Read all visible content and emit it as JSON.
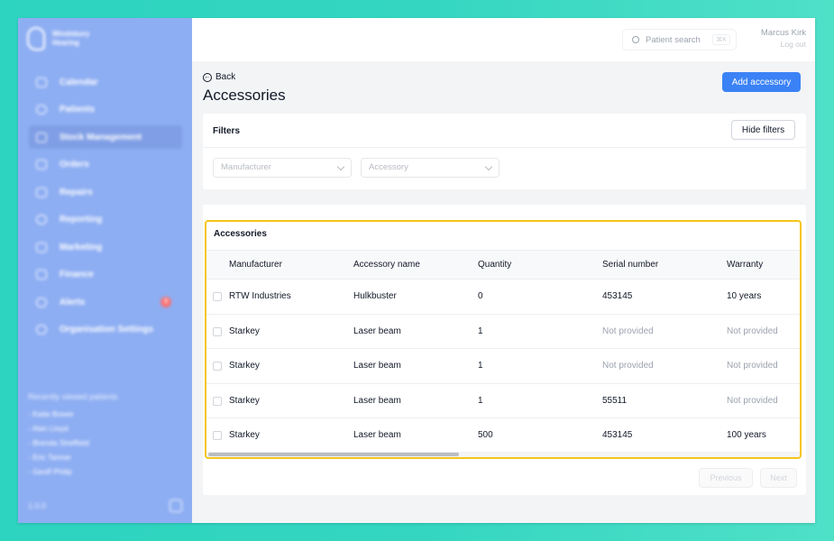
{
  "app": {
    "logo_line1": "Windsbury",
    "logo_line2": "Hearing"
  },
  "sidebar": {
    "items": [
      {
        "label": "Calendar"
      },
      {
        "label": "Patients"
      },
      {
        "label": "Stock Management"
      },
      {
        "label": "Orders"
      },
      {
        "label": "Repairs"
      },
      {
        "label": "Reporting"
      },
      {
        "label": "Marketing"
      },
      {
        "label": "Finance"
      },
      {
        "label": "Alerts",
        "badge": "3"
      },
      {
        "label": "Organisation Settings"
      }
    ],
    "recent_title": "Recently viewed patients",
    "recent": [
      "- Katie Bower",
      "- Alan Lloyd",
      "- Brenda Sheffield",
      "- Eric Tanner",
      "- Geoff Philip"
    ],
    "version": "1.0.0"
  },
  "header": {
    "search_placeholder": "Patient search",
    "search_shortcut": "⌘K",
    "user_name": "Marcus Kirk",
    "logout_label": "Log out"
  },
  "page": {
    "back_label": "Back",
    "title": "Accessories",
    "add_button": "Add accessory"
  },
  "filters": {
    "title": "Filters",
    "hide_button": "Hide filters",
    "manufacturer_placeholder": "Manufacturer",
    "accessory_placeholder": "Accessory"
  },
  "table": {
    "title": "Accessories",
    "columns": [
      "Manufacturer",
      "Accessory name",
      "Quantity",
      "Serial number",
      "Warranty"
    ],
    "rows": [
      [
        "RTW Industries",
        "Hulkbuster",
        "0",
        "453145",
        "10 years"
      ],
      [
        "Starkey",
        "Laser beam",
        "1",
        "Not provided",
        "Not provided"
      ],
      [
        "Starkey",
        "Laser beam",
        "1",
        "Not provided",
        "Not provided"
      ],
      [
        "Starkey",
        "Laser beam",
        "1",
        "55511",
        "Not provided"
      ],
      [
        "Starkey",
        "Laser beam",
        "500",
        "453145",
        "100 years"
      ]
    ]
  },
  "pagination": {
    "previous": "Previous",
    "next": "Next"
  },
  "colors": {
    "sidebar": "#8eaef3",
    "accent": "#3b82f6",
    "highlight": "#f5c518",
    "frame": "#2dd4bf"
  }
}
